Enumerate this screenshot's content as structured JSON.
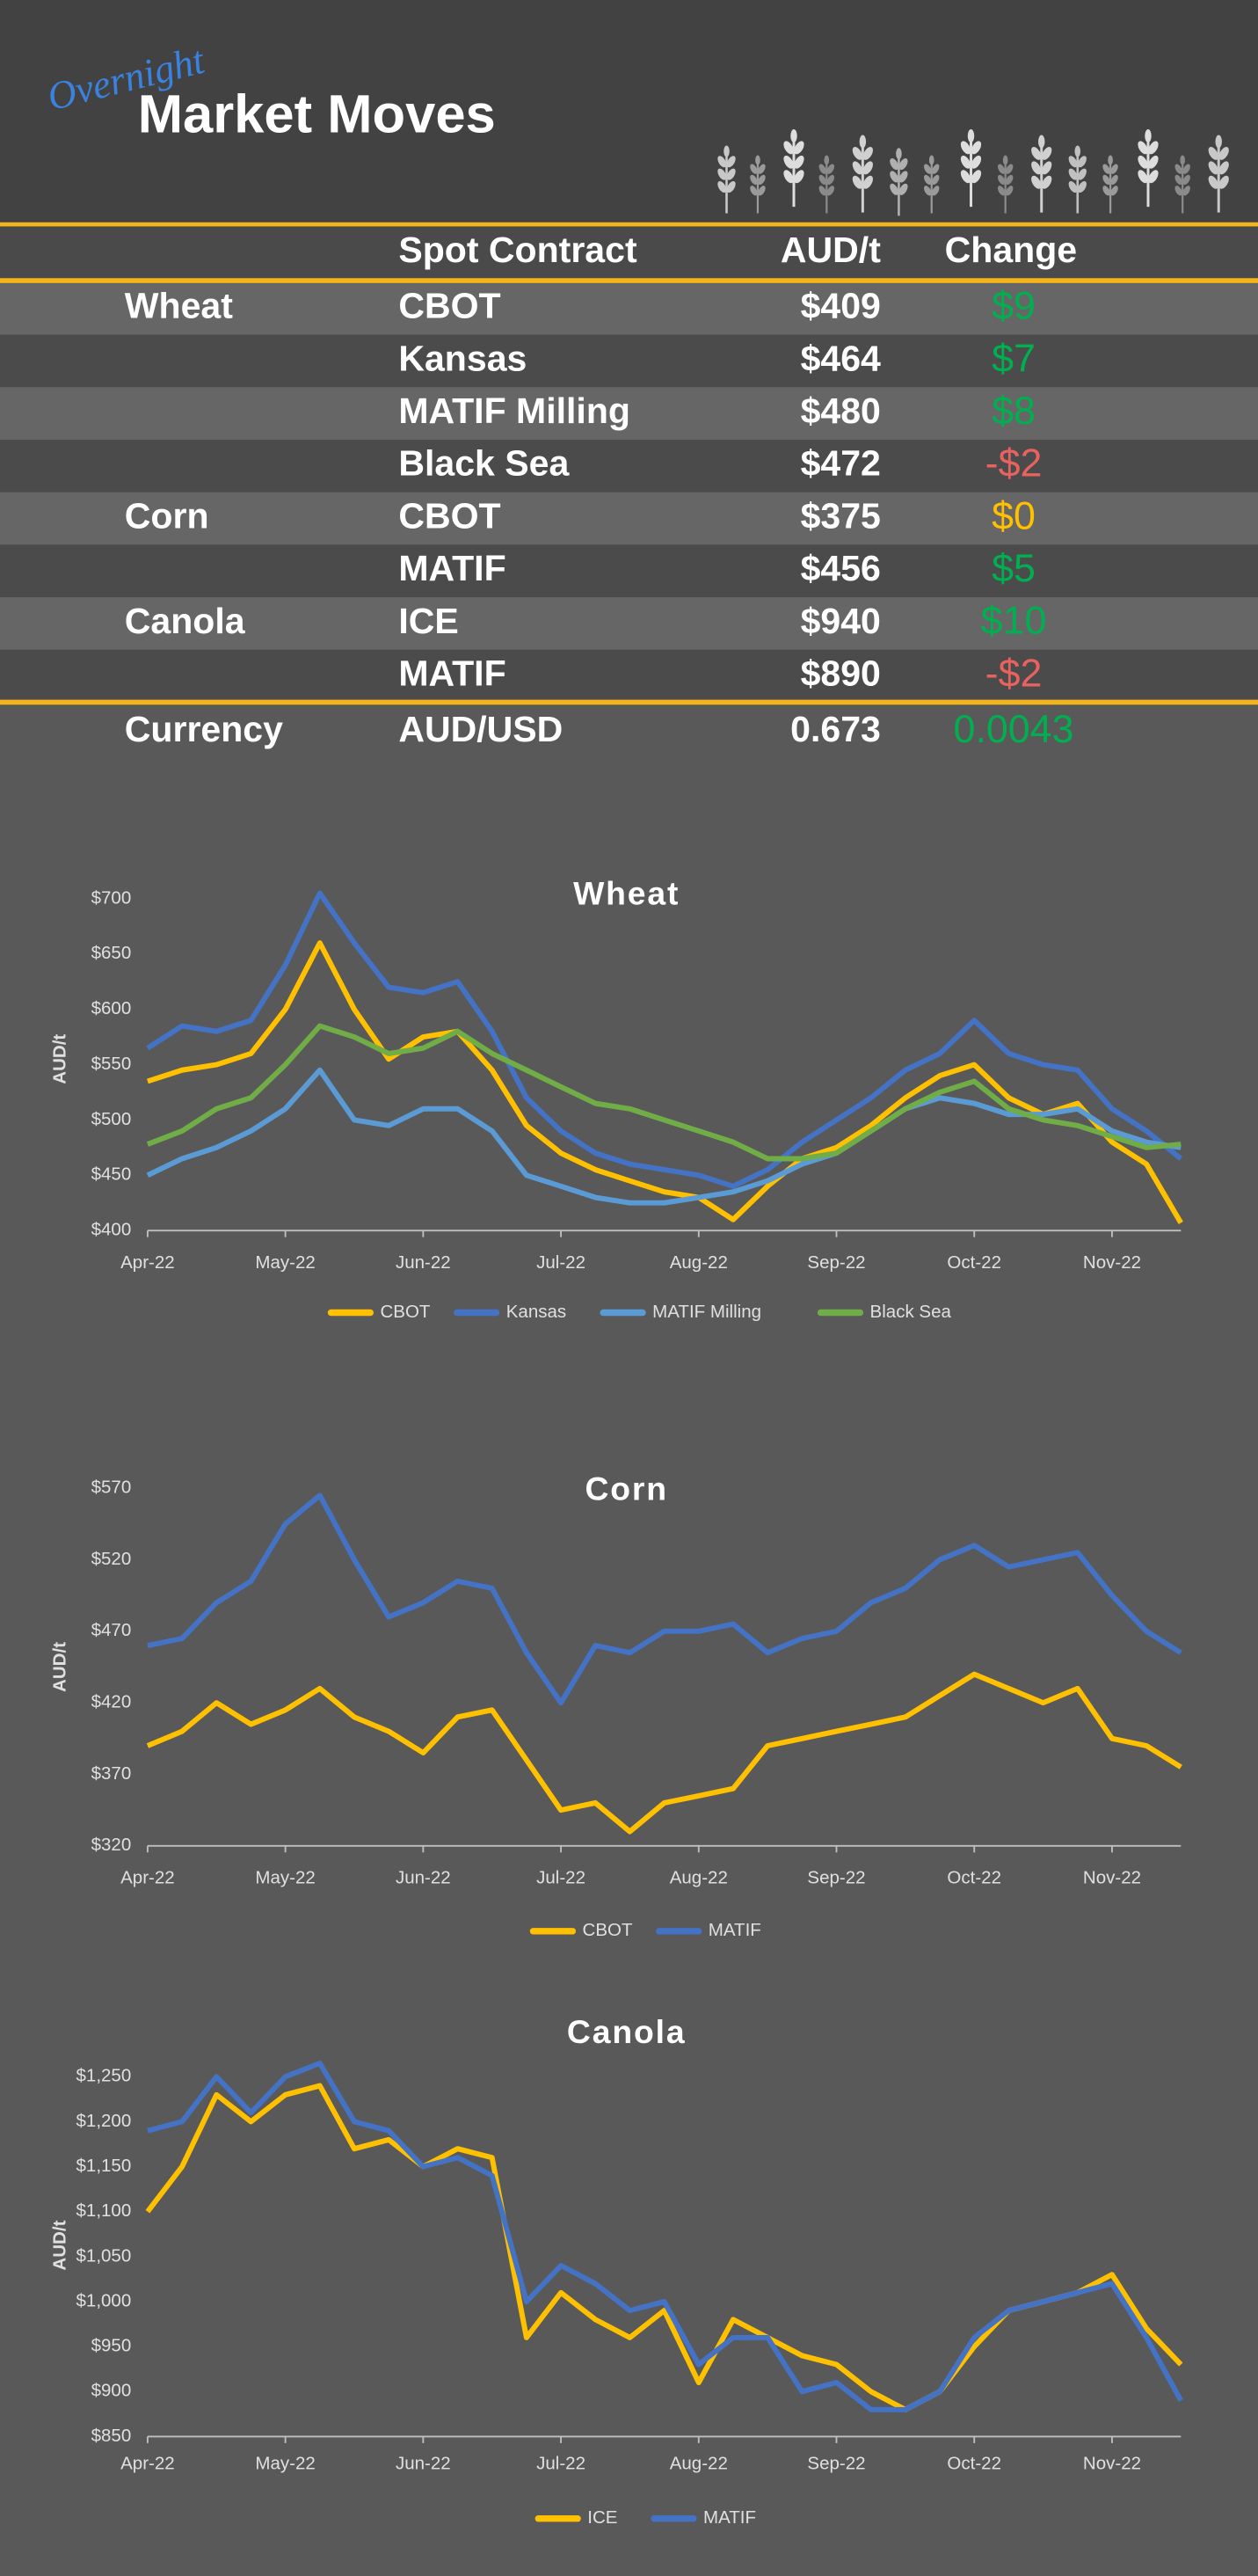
{
  "header": {
    "script": "Overnight",
    "title": "Market Moves"
  },
  "table": {
    "columns": [
      "Spot Contract",
      "AUD/t",
      "Change"
    ],
    "groups": [
      {
        "name": "Wheat",
        "rows": [
          {
            "contract": "CBOT",
            "price": "$409",
            "change": "$9",
            "change_color": "#00b050"
          },
          {
            "contract": "Kansas",
            "price": "$464",
            "change": "$7",
            "change_color": "#00b050"
          },
          {
            "contract": "MATIF Milling",
            "price": "$480",
            "change": "$8",
            "change_color": "#00b050"
          },
          {
            "contract": "Black Sea",
            "price": "$472",
            "change": "-$2",
            "change_color": "#e8625f"
          }
        ]
      },
      {
        "name": "Corn",
        "rows": [
          {
            "contract": "CBOT",
            "price": "$375",
            "change": "$0",
            "change_color": "#ffc000"
          },
          {
            "contract": "MATIF",
            "price": "$456",
            "change": "$5",
            "change_color": "#00b050"
          }
        ]
      },
      {
        "name": "Canola",
        "rows": [
          {
            "contract": "ICE",
            "price": "$940",
            "change": "$10",
            "change_color": "#00b050"
          },
          {
            "contract": "MATIF",
            "price": "$890",
            "change": "-$2",
            "change_color": "#e8625f"
          }
        ]
      }
    ],
    "currency": {
      "name": "Currency",
      "contract": "AUD/USD",
      "price": "0.673",
      "change": "0.0043",
      "change_color": "#00b050"
    }
  },
  "chart_data": [
    {
      "type": "line",
      "title": "Wheat",
      "y_label": "AUD/t",
      "categories": [
        "Apr-22",
        null,
        null,
        null,
        "May-22",
        null,
        null,
        null,
        "Jun-22",
        null,
        null,
        null,
        "Jul-22",
        null,
        null,
        null,
        "Aug-22",
        null,
        null,
        null,
        "Sep-22",
        null,
        null,
        null,
        "Oct-22",
        null,
        null,
        null,
        "Nov-22",
        null,
        null
      ],
      "ylim": [
        400,
        710
      ],
      "yticks": [
        {
          "value": 400,
          "label": "$400"
        },
        {
          "value": 450,
          "label": "$450"
        },
        {
          "value": 500,
          "label": "$500"
        },
        {
          "value": 550,
          "label": "$550"
        },
        {
          "value": 600,
          "label": "$600"
        },
        {
          "value": 650,
          "label": "$650"
        },
        {
          "value": 700,
          "label": "$700"
        }
      ],
      "grid": false,
      "series": [
        {
          "name": "CBOT",
          "color": "#ffc000",
          "values": [
            535,
            545,
            550,
            560,
            600,
            660,
            600,
            555,
            575,
            580,
            545,
            495,
            470,
            455,
            445,
            435,
            430,
            410,
            440,
            465,
            475,
            495,
            520,
            540,
            550,
            520,
            505,
            515,
            480,
            460,
            407
          ]
        },
        {
          "name": "Kansas",
          "color": "#4472c4",
          "values": [
            565,
            585,
            580,
            590,
            640,
            705,
            660,
            620,
            615,
            625,
            580,
            520,
            490,
            470,
            460,
            455,
            450,
            440,
            455,
            480,
            500,
            520,
            545,
            560,
            590,
            560,
            550,
            545,
            510,
            490,
            465
          ]
        },
        {
          "name": "MATIF Milling",
          "color": "#5b9bd5",
          "values": [
            450,
            465,
            475,
            490,
            510,
            545,
            500,
            495,
            510,
            510,
            490,
            450,
            440,
            430,
            425,
            425,
            430,
            435,
            445,
            460,
            470,
            490,
            510,
            520,
            515,
            505,
            505,
            510,
            490,
            480,
            475
          ]
        },
        {
          "name": "Black Sea",
          "color": "#70ad47",
          "values": [
            478,
            490,
            510,
            520,
            550,
            585,
            575,
            560,
            565,
            580,
            560,
            545,
            530,
            515,
            510,
            500,
            490,
            480,
            465,
            465,
            470,
            490,
            510,
            525,
            535,
            510,
            500,
            495,
            485,
            475,
            478
          ]
        }
      ]
    },
    {
      "type": "line",
      "title": "Corn",
      "y_label": "AUD/t",
      "categories": [
        "Apr-22",
        null,
        null,
        null,
        "May-22",
        null,
        null,
        null,
        "Jun-22",
        null,
        null,
        null,
        "Jul-22",
        null,
        null,
        null,
        "Aug-22",
        null,
        null,
        null,
        "Sep-22",
        null,
        null,
        null,
        "Oct-22",
        null,
        null,
        null,
        "Nov-22",
        null,
        null
      ],
      "ylim": [
        320,
        570
      ],
      "yticks": [
        {
          "value": 320,
          "label": "$320"
        },
        {
          "value": 370,
          "label": "$370"
        },
        {
          "value": 420,
          "label": "$420"
        },
        {
          "value": 470,
          "label": "$470"
        },
        {
          "value": 520,
          "label": "$520"
        },
        {
          "value": 570,
          "label": "$570"
        }
      ],
      "grid": false,
      "series": [
        {
          "name": "CBOT",
          "color": "#ffc000",
          "values": [
            390,
            400,
            420,
            405,
            415,
            430,
            410,
            400,
            385,
            410,
            415,
            380,
            345,
            350,
            330,
            350,
            355,
            360,
            390,
            395,
            400,
            405,
            410,
            425,
            440,
            430,
            420,
            430,
            395,
            390,
            375
          ]
        },
        {
          "name": "MATIF",
          "color": "#4472c4",
          "values": [
            460,
            465,
            490,
            505,
            545,
            565,
            520,
            480,
            490,
            505,
            500,
            455,
            420,
            460,
            455,
            470,
            470,
            475,
            455,
            465,
            470,
            490,
            500,
            520,
            530,
            515,
            520,
            525,
            495,
            470,
            455
          ]
        }
      ]
    },
    {
      "type": "line",
      "title": "Canola",
      "y_label": "AUD/t",
      "categories": [
        "Apr-22",
        null,
        null,
        null,
        "May-22",
        null,
        null,
        null,
        "Jun-22",
        null,
        null,
        null,
        "Jul-22",
        null,
        null,
        null,
        "Aug-22",
        null,
        null,
        null,
        "Sep-22",
        null,
        null,
        null,
        "Oct-22",
        null,
        null,
        null,
        "Nov-22",
        null,
        null
      ],
      "ylim": [
        850,
        1275
      ],
      "yticks": [
        {
          "value": 850,
          "label": "$850"
        },
        {
          "value": 900,
          "label": "$900"
        },
        {
          "value": 950,
          "label": "$950"
        },
        {
          "value": 1000,
          "label": "$1,000"
        },
        {
          "value": 1050,
          "label": "$1,050"
        },
        {
          "value": 1100,
          "label": "$1,100"
        },
        {
          "value": 1150,
          "label": "$1,150"
        },
        {
          "value": 1200,
          "label": "$1,200"
        },
        {
          "value": 1250,
          "label": "$1,250"
        }
      ],
      "grid": false,
      "series": [
        {
          "name": "ICE",
          "color": "#ffc000",
          "values": [
            1100,
            1150,
            1230,
            1200,
            1230,
            1240,
            1170,
            1180,
            1150,
            1170,
            1160,
            960,
            1010,
            980,
            960,
            990,
            910,
            980,
            960,
            940,
            930,
            900,
            880,
            900,
            950,
            990,
            1000,
            1010,
            1030,
            970,
            930
          ]
        },
        {
          "name": "MATIF",
          "color": "#4472c4",
          "values": [
            1190,
            1200,
            1250,
            1210,
            1250,
            1265,
            1200,
            1190,
            1150,
            1160,
            1140,
            1000,
            1040,
            1020,
            990,
            1000,
            930,
            960,
            960,
            900,
            910,
            880,
            880,
            900,
            960,
            990,
            1000,
            1010,
            1020,
            960,
            890
          ]
        }
      ]
    }
  ]
}
